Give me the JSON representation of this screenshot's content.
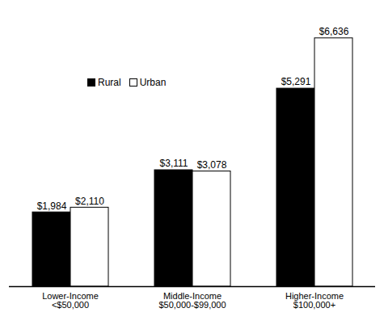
{
  "chart_data": {
    "type": "bar",
    "categories": [
      "Lower-Income\n<$50,000",
      "Middle-Income\n$50,000-$99,000",
      "Higher-Income\n$100,000+"
    ],
    "series": [
      {
        "name": "Rural",
        "color": "#000000",
        "values": [
          1984,
          3111,
          5291
        ],
        "value_labels": [
          "$1,984",
          "$3,111",
          "$5,291"
        ]
      },
      {
        "name": "Urban",
        "color": "#ffffff",
        "values": [
          2110,
          3078,
          6636
        ],
        "value_labels": [
          "$2,110",
          "$3,078",
          "$6,636"
        ]
      }
    ],
    "ylim": [
      0,
      7000
    ],
    "data_labels": true,
    "tick_labels": "x",
    "legend": "top-left",
    "grid": false
  }
}
